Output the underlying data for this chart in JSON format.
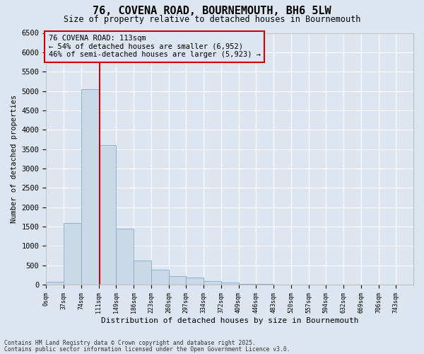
{
  "title_line1": "76, COVENA ROAD, BOURNEMOUTH, BH6 5LW",
  "title_line2": "Size of property relative to detached houses in Bournemouth",
  "xlabel": "Distribution of detached houses by size in Bournemouth",
  "ylabel": "Number of detached properties",
  "property_size": 113,
  "annotation_text": "76 COVENA ROAD: 113sqm\n← 54% of detached houses are smaller (6,952)\n46% of semi-detached houses are larger (5,923) →",
  "footer_line1": "Contains HM Land Registry data © Crown copyright and database right 2025.",
  "footer_line2": "Contains public sector information licensed under the Open Government Licence v3.0.",
  "bar_color": "#c9d9e8",
  "bar_edge_color": "#88aac8",
  "vline_color": "#cc0000",
  "background_color": "#dde6f0",
  "annotation_box_facecolor": "#dde6f0",
  "annotation_box_edgecolor": "#cc0000",
  "grid_color": "#ffffff",
  "bin_edges": [
    0,
    37,
    74,
    111,
    148,
    185,
    222,
    259,
    296,
    333,
    370,
    407,
    444,
    481,
    518,
    555,
    592,
    629,
    666,
    703,
    740,
    777
  ],
  "bin_labels": [
    "0sqm",
    "37sqm",
    "74sqm",
    "111sqm",
    "149sqm",
    "186sqm",
    "223sqm",
    "260sqm",
    "297sqm",
    "334sqm",
    "372sqm",
    "409sqm",
    "446sqm",
    "483sqm",
    "520sqm",
    "557sqm",
    "594sqm",
    "632sqm",
    "669sqm",
    "706sqm",
    "743sqm"
  ],
  "bar_heights": [
    80,
    1600,
    5050,
    3600,
    1450,
    620,
    380,
    230,
    180,
    100,
    50,
    30,
    20,
    10,
    5,
    3,
    2,
    1,
    1,
    1,
    1
  ],
  "ylim": [
    0,
    6500
  ],
  "yticks": [
    0,
    500,
    1000,
    1500,
    2000,
    2500,
    3000,
    3500,
    4000,
    4500,
    5000,
    5500,
    6000,
    6500
  ]
}
